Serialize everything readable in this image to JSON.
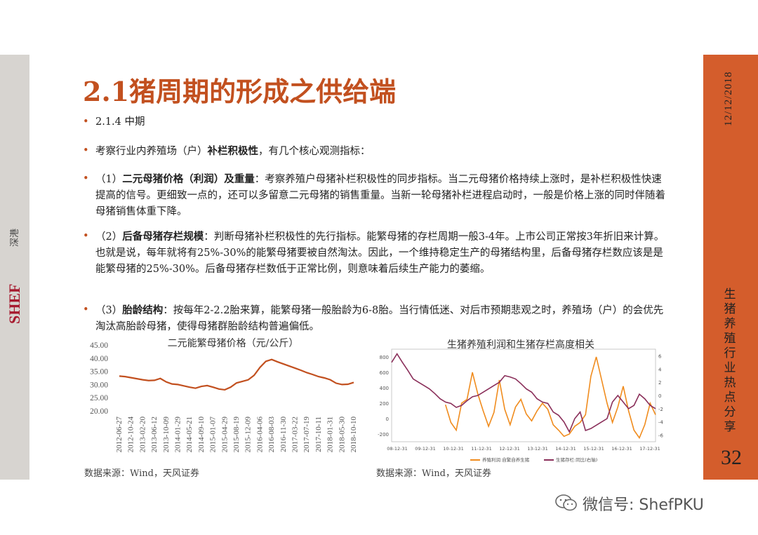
{
  "slide": {
    "title": "2.1猪周期的形成之供给端",
    "date": "12/12/2018",
    "side_title": "生猪养殖行业热点分享",
    "page_number": "32",
    "logo_text": "SHEF",
    "logo_cn": "深港",
    "watermark": "微信号: ShefPKU"
  },
  "bullets": [
    {
      "label": "",
      "text": "2.1.4 中期"
    },
    {
      "label": "考察行业内养殖场（户）",
      "bold": "补栏积极性",
      "text": "，有几个核心观测指标："
    },
    {
      "label": "（1）",
      "bold": "二元母猪价格（利润）及重量",
      "text": "：考察养殖户母猪补栏积极性的同步指标。当二元母猪价格持续上涨时，是补栏积极性快速提高的信号。更细致一点的，还可以多留意二元母猪的销售重量。当新一轮母猪补栏进程启动时，一般是价格上涨的同时伴随着母猪销售体重下降。"
    },
    {
      "label": "（2）",
      "bold": "后备母猪存栏规模",
      "text": "：判断母猪补栏积极性的先行指标。能繁母猪的存栏周期一般3-4年。上市公司正常按3年折旧来计算。也就是说，每年就将有25%-30%的能繁母猪要被自然淘汰。因此，一个维持稳定生产的母猪结构里，后备母猪存栏数应该是是能繁母猪的25%-30%。后备母猪存栏数低于正常比例，则意味着后续生产能力的萎缩。"
    },
    {
      "label": "（3）",
      "bold": "胎龄结构",
      "text": "：按每年2-2.2胎来算，能繁母猪一般胎龄为6-8胎。当行情低迷、对后市预期悲观之时，养殖场（户）的会优先淘汰高胎龄母猪，使得母猪群胎龄结构普遍偏低。"
    }
  ],
  "chart_data": [
    {
      "type": "line",
      "title": "二元能繁母猪价格（元/公斤）",
      "ylim": [
        20,
        45
      ],
      "yticks": [
        "45.00",
        "40.00",
        "35.00",
        "30.00",
        "25.00",
        "20.00"
      ],
      "xticks": [
        "2012-06-27",
        "2012-10-24",
        "2013-02-20",
        "2013-06-12",
        "2013-10-09",
        "2014-01-29",
        "2014-05-21",
        "2014-09-10",
        "2015-01-07",
        "2015-04-29",
        "2015-08-19",
        "2015-12-09",
        "2016-04-06",
        "2016-08-03",
        "2016-11-30",
        "2017-03-22",
        "2017-07-19",
        "2017-10-11",
        "2018-01-31",
        "2018-05-30",
        "2018-10-10"
      ],
      "series": [
        {
          "color": "#c2501f",
          "values": [
            33.2,
            33.0,
            32.6,
            32.2,
            31.8,
            31.5,
            31.6,
            32.3,
            31.0,
            30.2,
            30.0,
            29.5,
            29.0,
            28.6,
            29.3,
            29.6,
            29.0,
            28.3,
            28.0,
            29.0,
            30.6,
            31.2,
            31.8,
            33.5,
            36.5,
            38.8,
            39.5,
            38.6,
            37.8,
            37.0,
            36.2,
            35.4,
            34.5,
            33.8,
            33.0,
            32.5,
            31.8,
            30.5,
            30.0,
            30.1,
            30.8
          ]
        }
      ],
      "source": "数据来源：Wind，天风证券"
    },
    {
      "type": "line",
      "title": "生猪养殖利润和生猪存栏高度相关",
      "ylim_left": [
        -300,
        900
      ],
      "yticks_left": [
        "800",
        "600",
        "400",
        "200",
        "0",
        "-200"
      ],
      "ylim_right": [
        -7,
        7
      ],
      "yticks_right": [
        "6",
        "4",
        "2",
        "0",
        "-2",
        "-4",
        "-6"
      ],
      "xticks": [
        "08-12-31",
        "09-12-31",
        "10-12-31",
        "11-12-31",
        "12-12-31",
        "13-12-31",
        "14-12-31",
        "15-12-31",
        "16-12-31",
        "17-12-31"
      ],
      "series": [
        {
          "name": "养殖利润:自繁自养生猪",
          "axis": "left",
          "color": "#f08c1e",
          "values": [
            null,
            null,
            null,
            null,
            null,
            null,
            null,
            null,
            null,
            null,
            180,
            -50,
            -150,
            200,
            250,
            600,
            320,
            100,
            -100,
            80,
            500,
            120,
            -80,
            150,
            250,
            60,
            -30,
            100,
            200,
            120,
            -80,
            -150,
            -230,
            -200,
            -100,
            -50,
            50,
            550,
            800,
            500,
            200,
            -50,
            150,
            420,
            100,
            -150,
            -250,
            -80,
            200,
            50
          ]
        },
        {
          "name": "生猪存栏:同比(右轴)",
          "axis": "right",
          "color": "#8a2f5a",
          "values": [
            5,
            6.3,
            5,
            3.8,
            2.5,
            2,
            1.5,
            1,
            0.3,
            -0.5,
            -1,
            -1.2,
            -1.8,
            -1.5,
            -0.8,
            -0.2,
            0,
            0.5,
            1,
            1.5,
            2,
            3,
            2.8,
            2.5,
            1.8,
            1,
            0.5,
            -0.5,
            -1,
            -1.2,
            -2.5,
            -3,
            -4,
            -5.5,
            -3.5,
            -2.5,
            -5.3,
            -5,
            -4.5,
            -4,
            -3.5,
            -1,
            0,
            -1,
            -2,
            -1.5,
            0.2,
            -0.5,
            -1.5,
            -2
          ]
        }
      ],
      "source": "数据来源：Wind，天风证券"
    }
  ]
}
